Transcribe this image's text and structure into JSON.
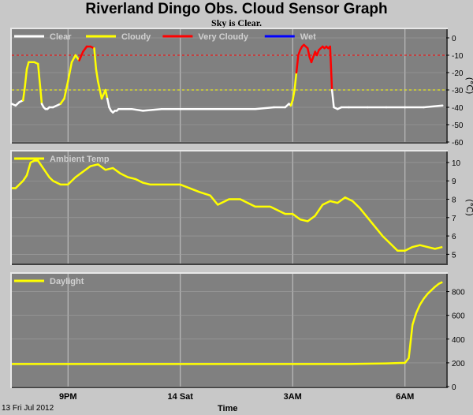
{
  "title": "Riverland Dingo Obs. Cloud Sensor Graph",
  "subtitle": "Sky is Clear.",
  "footer": {
    "date": "13 Fri Jul 2012",
    "xlabel": "Time"
  },
  "colors": {
    "background": "#c8c8c8",
    "plot_bg": "#808080",
    "clear": "#ffffff",
    "cloudy": "#ffff00",
    "very_cloudy": "#ff0000",
    "wet": "#0000ff",
    "threshold_cloudy": "#ffff00",
    "threshold_very_cloudy": "#ff0000"
  },
  "chart_data": [
    {
      "type": "line",
      "name": "cloud",
      "ylabel": "(°C)",
      "ylim": [
        -60,
        5
      ],
      "yticks": [
        0,
        -10,
        -20,
        -30,
        -40,
        -50,
        -60
      ],
      "xlim": [
        19.5,
        31.1
      ],
      "xticks": [
        {
          "x": 21,
          "label": "9PM"
        },
        {
          "x": 24,
          "label": "14 Sat"
        },
        {
          "x": 27,
          "label": "3AM"
        },
        {
          "x": 30,
          "label": "6AM"
        }
      ],
      "thresholds": [
        {
          "value": -10,
          "color": "#ff0000"
        },
        {
          "value": -30,
          "color": "#ffff00"
        }
      ],
      "legend": [
        {
          "label": "Clear",
          "color": "#ffffff"
        },
        {
          "label": "Cloudy",
          "color": "#ffff00"
        },
        {
          "label": "Very Cloudy",
          "color": "#ff0000"
        },
        {
          "label": "Wet",
          "color": "#0000ff"
        }
      ],
      "series": [
        {
          "x": [
            19.5,
            19.6,
            19.7,
            19.8,
            19.85,
            19.9,
            19.95,
            20.0,
            20.1,
            20.2,
            20.3,
            20.35,
            20.4,
            20.45,
            20.5,
            20.6,
            20.8,
            20.9,
            21.0,
            21.1,
            21.2,
            21.3,
            21.4,
            21.5,
            21.6,
            21.7,
            21.75,
            21.8,
            21.9,
            22.0,
            22.05,
            22.1,
            22.15,
            22.2,
            22.25,
            22.3,
            22.35,
            22.4,
            22.5,
            22.7,
            23.0,
            23.5,
            24.0,
            24.5,
            25.0,
            25.5,
            26.0,
            26.5,
            26.8,
            26.9,
            26.95,
            27.0,
            27.05,
            27.1,
            27.15,
            27.2,
            27.25,
            27.3,
            27.35,
            27.4,
            27.45,
            27.5,
            27.55,
            27.6,
            27.65,
            27.7,
            27.75,
            27.8,
            27.85,
            27.9,
            27.95,
            28.0,
            28.05,
            28.1,
            28.2,
            28.3,
            28.5,
            29.0,
            29.5,
            30.0,
            30.5,
            31.0
          ],
          "y": [
            -38,
            -39,
            -37,
            -36,
            -28,
            -18,
            -14,
            -14,
            -14,
            -15,
            -38,
            -40,
            -41,
            -41,
            -40,
            -40,
            -38,
            -35,
            -25,
            -14,
            -10,
            -13,
            -8,
            -5,
            -5,
            -6,
            -18,
            -25,
            -35,
            -30,
            -35,
            -40,
            -42,
            -43,
            -42,
            -42,
            -41,
            -41,
            -41,
            -41,
            -42,
            -41,
            -41,
            -41,
            -41,
            -41,
            -41,
            -40,
            -40,
            -38,
            -39,
            -36,
            -30,
            -20,
            -10,
            -7,
            -5,
            -4,
            -5,
            -6,
            -11,
            -14,
            -11,
            -8,
            -10,
            -7,
            -6,
            -5,
            -6,
            -5,
            -6,
            -5,
            -30,
            -40,
            -41,
            -40,
            -40,
            -40,
            -40,
            -40,
            -40,
            -39
          ],
          "cat": [
            "clear",
            "clear",
            "clear",
            "clear",
            "cloudy",
            "cloudy",
            "cloudy",
            "cloudy",
            "cloudy",
            "cloudy",
            "cloudy",
            "clear",
            "clear",
            "clear",
            "clear",
            "clear",
            "clear",
            "cloudy",
            "cloudy",
            "cloudy",
            "cloudy",
            "cloudy",
            "very_cloudy",
            "very_cloudy",
            "very_cloudy",
            "very_cloudy",
            "cloudy",
            "cloudy",
            "cloudy",
            "cloudy",
            "cloudy",
            "clear",
            "clear",
            "clear",
            "clear",
            "clear",
            "clear",
            "clear",
            "clear",
            "clear",
            "clear",
            "clear",
            "clear",
            "clear",
            "clear",
            "clear",
            "clear",
            "clear",
            "clear",
            "clear",
            "clear",
            "cloudy",
            "cloudy",
            "cloudy",
            "very_cloudy",
            "very_cloudy",
            "very_cloudy",
            "very_cloudy",
            "very_cloudy",
            "very_cloudy",
            "very_cloudy",
            "very_cloudy",
            "very_cloudy",
            "very_cloudy",
            "very_cloudy",
            "very_cloudy",
            "very_cloudy",
            "very_cloudy",
            "very_cloudy",
            "very_cloudy",
            "very_cloudy",
            "very_cloudy",
            "very_cloudy",
            "clear",
            "clear",
            "clear",
            "clear",
            "clear",
            "clear",
            "clear",
            "clear",
            "clear"
          ]
        }
      ]
    },
    {
      "type": "line",
      "name": "ambient",
      "ylabel": "(°C)",
      "ylim": [
        4.5,
        10.6
      ],
      "yticks": [
        5,
        6,
        7,
        8,
        9,
        10
      ],
      "xlim": [
        19.5,
        31.1
      ],
      "xticks": [
        {
          "x": 21,
          "label": "9PM"
        },
        {
          "x": 24,
          "label": "14 Sat"
        },
        {
          "x": 27,
          "label": "3AM"
        },
        {
          "x": 30,
          "label": "6AM"
        }
      ],
      "legend": [
        {
          "label": "Ambient Temp",
          "color": "#ffff00"
        }
      ],
      "series": [
        {
          "name": "Ambient Temp",
          "x": [
            19.5,
            19.6,
            19.7,
            19.8,
            19.9,
            20.0,
            20.1,
            20.2,
            20.3,
            20.4,
            20.5,
            20.6,
            20.8,
            21.0,
            21.2,
            21.4,
            21.6,
            21.8,
            22.0,
            22.2,
            22.4,
            22.6,
            22.8,
            23.0,
            23.2,
            23.5,
            24.0,
            24.5,
            24.8,
            25.0,
            25.3,
            25.6,
            26.0,
            26.4,
            26.8,
            27.0,
            27.2,
            27.4,
            27.6,
            27.8,
            28.0,
            28.2,
            28.4,
            28.6,
            28.8,
            29.0,
            29.2,
            29.4,
            29.6,
            29.8,
            30.0,
            30.2,
            30.4,
            30.6,
            30.8,
            31.0
          ],
          "y": [
            8.6,
            8.6,
            8.8,
            9.0,
            9.3,
            10.0,
            10.1,
            10.1,
            9.8,
            9.5,
            9.2,
            9.0,
            8.8,
            8.8,
            9.2,
            9.5,
            9.8,
            9.9,
            9.6,
            9.7,
            9.4,
            9.2,
            9.1,
            8.9,
            8.8,
            8.8,
            8.8,
            8.4,
            8.2,
            7.7,
            8.0,
            8.0,
            7.6,
            7.6,
            7.2,
            7.2,
            6.9,
            6.8,
            7.1,
            7.7,
            7.9,
            7.8,
            8.1,
            7.9,
            7.5,
            7.0,
            6.5,
            6.0,
            5.6,
            5.2,
            5.2,
            5.4,
            5.5,
            5.4,
            5.3,
            5.4
          ]
        }
      ]
    },
    {
      "type": "line",
      "name": "daylight",
      "ylabel": "",
      "ylim": [
        0,
        950
      ],
      "yticks": [
        0,
        200,
        400,
        600,
        800
      ],
      "xlim": [
        19.5,
        31.1
      ],
      "xticks": [
        {
          "x": 21,
          "label": "9PM"
        },
        {
          "x": 24,
          "label": "14 Sat"
        },
        {
          "x": 27,
          "label": "3AM"
        },
        {
          "x": 30,
          "label": "6AM"
        }
      ],
      "legend": [
        {
          "label": "Daylight",
          "color": "#ffff00"
        }
      ],
      "series": [
        {
          "name": "Daylight",
          "x": [
            19.5,
            20.5,
            21.5,
            22.5,
            23.5,
            24.5,
            25.5,
            26.5,
            27.5,
            28.5,
            29.5,
            30.0,
            30.1,
            30.15,
            30.2,
            30.3,
            30.4,
            30.5,
            30.6,
            30.7,
            30.8,
            30.9,
            31.0
          ],
          "y": [
            190,
            190,
            190,
            190,
            190,
            190,
            190,
            190,
            190,
            190,
            195,
            200,
            240,
            380,
            520,
            620,
            690,
            740,
            780,
            810,
            840,
            865,
            880
          ]
        }
      ]
    }
  ]
}
